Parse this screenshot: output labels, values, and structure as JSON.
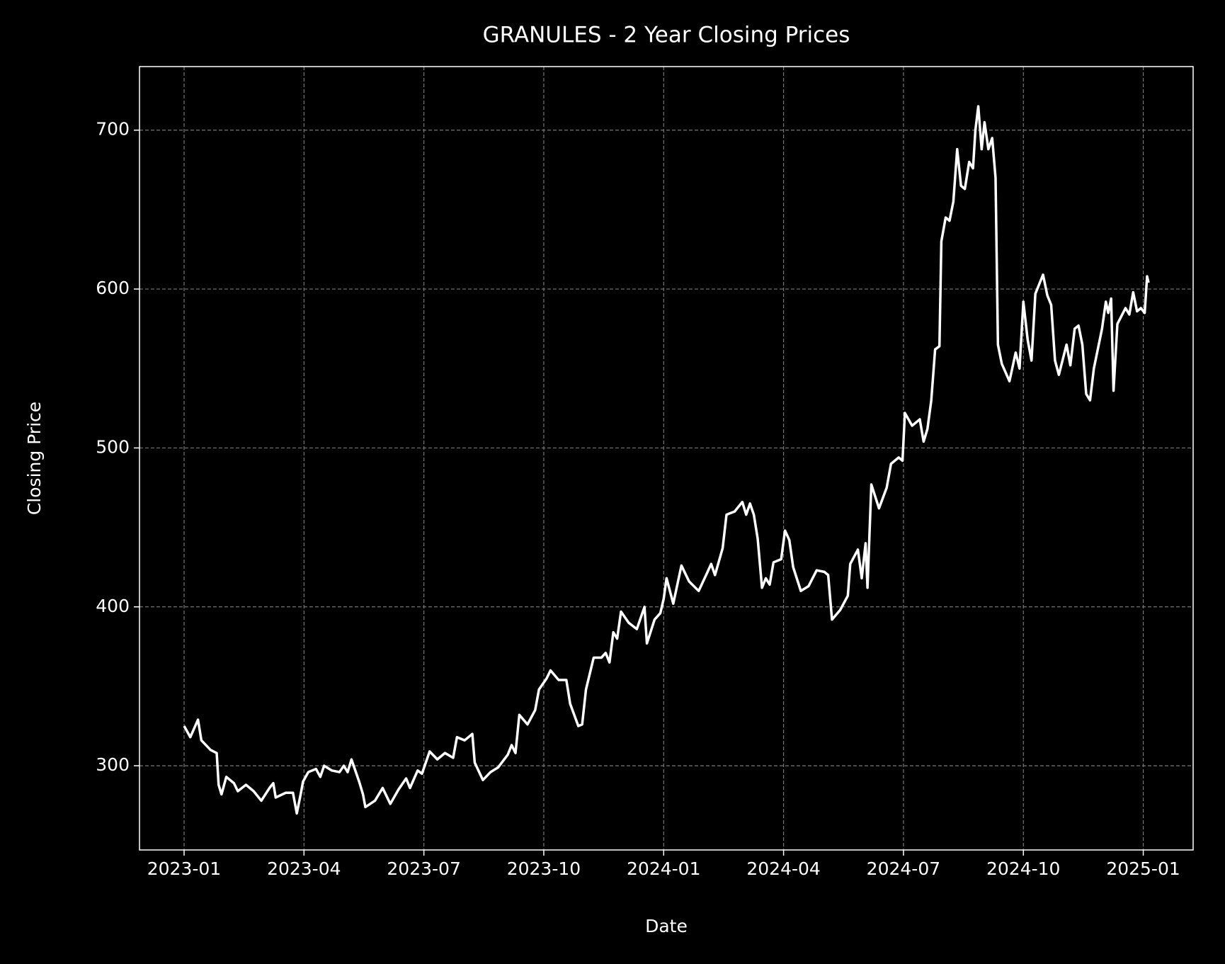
{
  "chart_data": {
    "type": "line",
    "title": "GRANULES - 2 Year Closing Prices",
    "xlabel": "Date",
    "ylabel": "Closing Price",
    "xlim": [
      2022.907,
      2025.104
    ],
    "ylim": [
      247,
      740
    ],
    "xticks": [
      {
        "value": 2023.0,
        "label": "2023-01"
      },
      {
        "value": 2023.25,
        "label": "2023-04"
      },
      {
        "value": 2023.5,
        "label": "2023-07"
      },
      {
        "value": 2023.75,
        "label": "2023-10"
      },
      {
        "value": 2024.0,
        "label": "2024-01"
      },
      {
        "value": 2024.25,
        "label": "2024-04"
      },
      {
        "value": 2024.5,
        "label": "2024-07"
      },
      {
        "value": 2024.75,
        "label": "2024-10"
      },
      {
        "value": 2025.0,
        "label": "2025-01"
      }
    ],
    "yticks": [
      300,
      400,
      500,
      600,
      700
    ],
    "grid": true,
    "x": [
      2023.0,
      2023.013,
      2023.029,
      2023.036,
      2023.055,
      2023.068,
      2023.072,
      2023.078,
      2023.088,
      2023.104,
      2023.112,
      2023.129,
      2023.145,
      2023.161,
      2023.178,
      2023.186,
      2023.191,
      2023.212,
      2023.227,
      2023.235,
      2023.243,
      2023.248,
      2023.259,
      2023.275,
      2023.284,
      2023.292,
      2023.308,
      2023.324,
      2023.333,
      2023.341,
      2023.349,
      2023.365,
      2023.373,
      2023.378,
      2023.398,
      2023.414,
      2023.43,
      2023.447,
      2023.463,
      2023.471,
      2023.487,
      2023.496,
      2023.512,
      2023.528,
      2023.544,
      2023.561,
      2023.569,
      2023.585,
      2023.601,
      2023.606,
      2023.623,
      2023.639,
      2023.655,
      2023.675,
      2023.683,
      2023.691,
      2023.699,
      2023.716,
      2023.732,
      2023.74,
      2023.756,
      2023.764,
      2023.781,
      2023.797,
      2023.805,
      2023.822,
      2023.83,
      2023.838,
      2023.854,
      2023.87,
      2023.879,
      2023.887,
      2023.895,
      2023.903,
      2023.911,
      2023.927,
      2023.944,
      2023.96,
      2023.965,
      2023.981,
      2023.993,
      2024.0,
      2024.006,
      2024.02,
      2024.037,
      2024.053,
      2024.073,
      2024.09,
      2024.099,
      2024.107,
      2024.123,
      2024.131,
      2024.148,
      2024.164,
      2024.172,
      2024.18,
      2024.188,
      2024.196,
      2024.205,
      2024.213,
      2024.221,
      2024.229,
      2024.245,
      2024.253,
      2024.262,
      2024.27,
      2024.286,
      2024.302,
      2024.319,
      2024.335,
      2024.343,
      2024.351,
      2024.368,
      2024.384,
      2024.389,
      2024.405,
      2024.413,
      2024.421,
      2024.425,
      2024.433,
      2024.449,
      2024.465,
      2024.474,
      2024.49,
      2024.498,
      2024.503,
      2024.518,
      2024.534,
      2024.542,
      2024.55,
      2024.558,
      2024.566,
      2024.575,
      2024.579,
      2024.588,
      2024.596,
      2024.604,
      2024.612,
      2024.62,
      2024.628,
      2024.637,
      2024.645,
      2024.65,
      2024.656,
      2024.663,
      2024.669,
      2024.677,
      2024.685,
      2024.692,
      2024.697,
      2024.705,
      2024.721,
      2024.734,
      2024.742,
      2024.75,
      2024.759,
      2024.767,
      2024.775,
      2024.791,
      2024.8,
      2024.808,
      2024.816,
      2024.824,
      2024.84,
      2024.848,
      2024.857,
      2024.865,
      2024.873,
      2024.881,
      2024.889,
      2024.897,
      2024.914,
      2024.922,
      2024.927,
      2024.933,
      2024.938,
      2024.946,
      2024.963,
      2024.971,
      2024.979,
      2024.987,
      2024.995,
      2025.003,
      2025.008,
      2025.011
    ],
    "series": [
      {
        "name": "GRANULES",
        "color": "#ffffff",
        "values": [
          325,
          318,
          329,
          316,
          310,
          308,
          288,
          282,
          293,
          289,
          284,
          288,
          284,
          278,
          286,
          289,
          280,
          283,
          283,
          270,
          282,
          290,
          296,
          298,
          293,
          300,
          297,
          296,
          300,
          296,
          304,
          290,
          282,
          274,
          278,
          286,
          276,
          285,
          292,
          286,
          297,
          295,
          309,
          304,
          308,
          305,
          318,
          316,
          320,
          302,
          291,
          296,
          299,
          307,
          313,
          308,
          332,
          326,
          335,
          348,
          355,
          360,
          354,
          354,
          339,
          325,
          326,
          348,
          368,
          368,
          371,
          365,
          384,
          380,
          397,
          390,
          386,
          400,
          377,
          392,
          396,
          405,
          418,
          402,
          426,
          416,
          410,
          421,
          427,
          420,
          437,
          458,
          460,
          466,
          458,
          465,
          458,
          443,
          412,
          418,
          414,
          428,
          430,
          448,
          442,
          425,
          410,
          413,
          423,
          422,
          420,
          392,
          398,
          407,
          427,
          436,
          418,
          440,
          412,
          477,
          462,
          475,
          490,
          494,
          492,
          522,
          514,
          518,
          504,
          512,
          530,
          562,
          564,
          630,
          645,
          643,
          655,
          688,
          665,
          663,
          680,
          676,
          700,
          715,
          688,
          705,
          688,
          695,
          670,
          565,
          553,
          542,
          560,
          550,
          592,
          568,
          555,
          597,
          609,
          596,
          590,
          555,
          546,
          565,
          552,
          575,
          577,
          565,
          534,
          530,
          550,
          575,
          592,
          585,
          594,
          536,
          578,
          588,
          584,
          598,
          586,
          588,
          585,
          608,
          604
        ]
      }
    ]
  }
}
